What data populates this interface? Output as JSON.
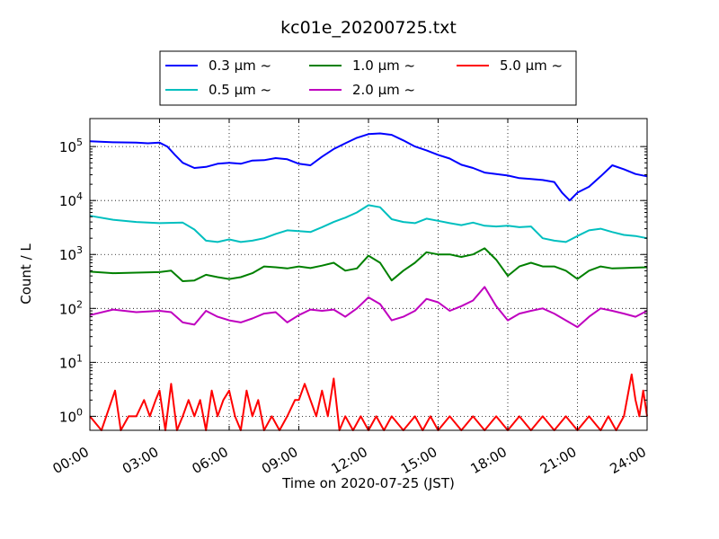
{
  "chart_data": {
    "type": "line",
    "title": "kc01e_20200725.txt",
    "xlabel": "Time on 2020-07-25 (JST)",
    "ylabel": "Count / L",
    "y_scale": "log",
    "xlim": [
      "00:00",
      "24:00"
    ],
    "ylim": [
      0.55,
      330000
    ],
    "grid": true,
    "legend_position": "top-center, above plot",
    "x_ticks": [
      "00:00",
      "03:00",
      "06:00",
      "09:00",
      "12:00",
      "15:00",
      "18:00",
      "21:00",
      "24:00"
    ],
    "y_ticks": [
      {
        "value": 1,
        "base": "10",
        "exp": "0"
      },
      {
        "value": 10,
        "base": "10",
        "exp": "1"
      },
      {
        "value": 100,
        "base": "10",
        "exp": "2"
      },
      {
        "value": 1000,
        "base": "10",
        "exp": "3"
      },
      {
        "value": 10000,
        "base": "10",
        "exp": "4"
      },
      {
        "value": 100000,
        "base": "10",
        "exp": "5"
      }
    ],
    "series": [
      {
        "name": "0.3 μm ~",
        "color": "#0000ff",
        "points": [
          [
            "00:00",
            125000
          ],
          [
            "01:00",
            120000
          ],
          [
            "02:00",
            118000
          ],
          [
            "02:30",
            115000
          ],
          [
            "03:00",
            118000
          ],
          [
            "03:20",
            100000
          ],
          [
            "03:40",
            70000
          ],
          [
            "04:00",
            50000
          ],
          [
            "04:30",
            40000
          ],
          [
            "05:00",
            42000
          ],
          [
            "05:30",
            48000
          ],
          [
            "06:00",
            50000
          ],
          [
            "06:30",
            48000
          ],
          [
            "07:00",
            55000
          ],
          [
            "07:30",
            56000
          ],
          [
            "08:00",
            61000
          ],
          [
            "08:30",
            58000
          ],
          [
            "09:00",
            48000
          ],
          [
            "09:30",
            45000
          ],
          [
            "10:00",
            65000
          ],
          [
            "10:30",
            90000
          ],
          [
            "11:00",
            115000
          ],
          [
            "11:30",
            145000
          ],
          [
            "12:00",
            170000
          ],
          [
            "12:30",
            175000
          ],
          [
            "13:00",
            165000
          ],
          [
            "13:30",
            130000
          ],
          [
            "14:00",
            100000
          ],
          [
            "14:30",
            85000
          ],
          [
            "15:00",
            70000
          ],
          [
            "15:30",
            60000
          ],
          [
            "16:00",
            46000
          ],
          [
            "16:30",
            40000
          ],
          [
            "17:00",
            33000
          ],
          [
            "17:30",
            31000
          ],
          [
            "18:00",
            29000
          ],
          [
            "18:30",
            26000
          ],
          [
            "19:00",
            25000
          ],
          [
            "19:30",
            24000
          ],
          [
            "20:00",
            22000
          ],
          [
            "20:20",
            14000
          ],
          [
            "20:40",
            10000
          ],
          [
            "21:00",
            14000
          ],
          [
            "21:30",
            18000
          ],
          [
            "22:00",
            28000
          ],
          [
            "22:30",
            45000
          ],
          [
            "23:00",
            38000
          ],
          [
            "23:30",
            31000
          ],
          [
            "24:00",
            28000
          ]
        ]
      },
      {
        "name": "0.5 μm ~",
        "color": "#00bfbf",
        "points": [
          [
            "00:00",
            5200
          ],
          [
            "01:00",
            4400
          ],
          [
            "02:00",
            4000
          ],
          [
            "03:00",
            3800
          ],
          [
            "04:00",
            3900
          ],
          [
            "04:30",
            2900
          ],
          [
            "05:00",
            1800
          ],
          [
            "05:30",
            1700
          ],
          [
            "06:00",
            1900
          ],
          [
            "06:30",
            1700
          ],
          [
            "07:00",
            1800
          ],
          [
            "07:30",
            2000
          ],
          [
            "08:00",
            2400
          ],
          [
            "08:30",
            2800
          ],
          [
            "09:00",
            2700
          ],
          [
            "09:30",
            2600
          ],
          [
            "10:00",
            3200
          ],
          [
            "10:30",
            4000
          ],
          [
            "11:00",
            4800
          ],
          [
            "11:30",
            6000
          ],
          [
            "12:00",
            8200
          ],
          [
            "12:30",
            7500
          ],
          [
            "13:00",
            4500
          ],
          [
            "13:30",
            4000
          ],
          [
            "14:00",
            3800
          ],
          [
            "14:30",
            4600
          ],
          [
            "15:00",
            4200
          ],
          [
            "15:30",
            3800
          ],
          [
            "16:00",
            3500
          ],
          [
            "16:30",
            3900
          ],
          [
            "17:00",
            3400
          ],
          [
            "17:30",
            3300
          ],
          [
            "18:00",
            3400
          ],
          [
            "18:30",
            3200
          ],
          [
            "19:00",
            3300
          ],
          [
            "19:30",
            2000
          ],
          [
            "20:00",
            1800
          ],
          [
            "20:30",
            1700
          ],
          [
            "21:00",
            2200
          ],
          [
            "21:30",
            2800
          ],
          [
            "22:00",
            3000
          ],
          [
            "22:30",
            2600
          ],
          [
            "23:00",
            2300
          ],
          [
            "23:30",
            2200
          ],
          [
            "24:00",
            2000
          ]
        ]
      },
      {
        "name": "1.0 μm ~",
        "color": "#008000",
        "points": [
          [
            "00:00",
            480
          ],
          [
            "01:00",
            450
          ],
          [
            "02:00",
            460
          ],
          [
            "03:00",
            470
          ],
          [
            "03:30",
            500
          ],
          [
            "04:00",
            320
          ],
          [
            "04:30",
            330
          ],
          [
            "05:00",
            420
          ],
          [
            "05:30",
            380
          ],
          [
            "06:00",
            350
          ],
          [
            "06:30",
            380
          ],
          [
            "07:00",
            450
          ],
          [
            "07:30",
            600
          ],
          [
            "08:00",
            580
          ],
          [
            "08:30",
            550
          ],
          [
            "09:00",
            600
          ],
          [
            "09:30",
            560
          ],
          [
            "10:00",
            620
          ],
          [
            "10:30",
            700
          ],
          [
            "11:00",
            500
          ],
          [
            "11:30",
            550
          ],
          [
            "12:00",
            950
          ],
          [
            "12:30",
            700
          ],
          [
            "13:00",
            330
          ],
          [
            "13:30",
            500
          ],
          [
            "14:00",
            700
          ],
          [
            "14:30",
            1100
          ],
          [
            "15:00",
            1000
          ],
          [
            "15:30",
            1000
          ],
          [
            "16:00",
            900
          ],
          [
            "16:30",
            1000
          ],
          [
            "17:00",
            1300
          ],
          [
            "17:30",
            800
          ],
          [
            "18:00",
            400
          ],
          [
            "18:30",
            600
          ],
          [
            "19:00",
            700
          ],
          [
            "19:30",
            600
          ],
          [
            "20:00",
            600
          ],
          [
            "20:30",
            500
          ],
          [
            "21:00",
            350
          ],
          [
            "21:30",
            500
          ],
          [
            "22:00",
            600
          ],
          [
            "22:30",
            550
          ],
          [
            "23:00",
            560
          ],
          [
            "23:30",
            570
          ],
          [
            "24:00",
            580
          ]
        ]
      },
      {
        "name": "2.0 μm ~",
        "color": "#bf00bf",
        "points": [
          [
            "00:00",
            75
          ],
          [
            "01:00",
            95
          ],
          [
            "02:00",
            85
          ],
          [
            "03:00",
            90
          ],
          [
            "03:30",
            85
          ],
          [
            "04:00",
            55
          ],
          [
            "04:30",
            50
          ],
          [
            "05:00",
            90
          ],
          [
            "05:30",
            70
          ],
          [
            "06:00",
            60
          ],
          [
            "06:30",
            55
          ],
          [
            "07:00",
            65
          ],
          [
            "07:30",
            80
          ],
          [
            "08:00",
            85
          ],
          [
            "08:30",
            55
          ],
          [
            "09:00",
            75
          ],
          [
            "09:30",
            95
          ],
          [
            "10:00",
            90
          ],
          [
            "10:30",
            95
          ],
          [
            "11:00",
            70
          ],
          [
            "11:30",
            100
          ],
          [
            "12:00",
            160
          ],
          [
            "12:30",
            120
          ],
          [
            "13:00",
            60
          ],
          [
            "13:30",
            70
          ],
          [
            "14:00",
            90
          ],
          [
            "14:30",
            150
          ],
          [
            "15:00",
            130
          ],
          [
            "15:30",
            90
          ],
          [
            "16:00",
            110
          ],
          [
            "16:30",
            140
          ],
          [
            "17:00",
            250
          ],
          [
            "17:30",
            110
          ],
          [
            "18:00",
            60
          ],
          [
            "18:30",
            80
          ],
          [
            "19:00",
            90
          ],
          [
            "19:30",
            100
          ],
          [
            "20:00",
            80
          ],
          [
            "20:30",
            60
          ],
          [
            "21:00",
            45
          ],
          [
            "21:30",
            70
          ],
          [
            "22:00",
            100
          ],
          [
            "22:30",
            90
          ],
          [
            "23:00",
            80
          ],
          [
            "23:30",
            70
          ],
          [
            "24:00",
            90
          ]
        ]
      },
      {
        "name": "5.0 μm ~",
        "color": "#ff0000",
        "points": [
          [
            "00:00",
            1
          ],
          [
            "00:30",
            0
          ],
          [
            "01:05",
            3
          ],
          [
            "01:20",
            0
          ],
          [
            "01:40",
            1
          ],
          [
            "02:00",
            1
          ],
          [
            "02:20",
            2
          ],
          [
            "02:35",
            1
          ],
          [
            "02:50",
            2
          ],
          [
            "03:00",
            3
          ],
          [
            "03:15",
            0
          ],
          [
            "03:30",
            4
          ],
          [
            "03:45",
            0
          ],
          [
            "04:00",
            1
          ],
          [
            "04:15",
            2
          ],
          [
            "04:30",
            1
          ],
          [
            "04:45",
            2
          ],
          [
            "05:00",
            0
          ],
          [
            "05:15",
            3
          ],
          [
            "05:30",
            1
          ],
          [
            "05:45",
            2
          ],
          [
            "06:00",
            3
          ],
          [
            "06:15",
            1
          ],
          [
            "06:30",
            0
          ],
          [
            "06:45",
            3
          ],
          [
            "07:00",
            1
          ],
          [
            "07:15",
            2
          ],
          [
            "07:30",
            0
          ],
          [
            "07:50",
            1
          ],
          [
            "08:10",
            0
          ],
          [
            "08:30",
            1
          ],
          [
            "08:50",
            2
          ],
          [
            "09:00",
            2
          ],
          [
            "09:15",
            4
          ],
          [
            "09:30",
            2
          ],
          [
            "09:45",
            1
          ],
          [
            "10:00",
            3
          ],
          [
            "10:15",
            1
          ],
          [
            "10:30",
            5
          ],
          [
            "10:45",
            0
          ],
          [
            "11:00",
            1
          ],
          [
            "11:20",
            0
          ],
          [
            "11:40",
            1
          ],
          [
            "12:00",
            0
          ],
          [
            "12:20",
            1
          ],
          [
            "12:40",
            0
          ],
          [
            "13:00",
            1
          ],
          [
            "13:30",
            0
          ],
          [
            "14:00",
            1
          ],
          [
            "14:20",
            0
          ],
          [
            "14:40",
            1
          ],
          [
            "15:00",
            0
          ],
          [
            "15:30",
            1
          ],
          [
            "16:00",
            0
          ],
          [
            "16:30",
            1
          ],
          [
            "17:00",
            0
          ],
          [
            "17:30",
            1
          ],
          [
            "18:00",
            0
          ],
          [
            "18:30",
            1
          ],
          [
            "19:00",
            0
          ],
          [
            "19:30",
            1
          ],
          [
            "20:00",
            0
          ],
          [
            "20:30",
            1
          ],
          [
            "21:00",
            0
          ],
          [
            "21:30",
            1
          ],
          [
            "22:00",
            0
          ],
          [
            "22:20",
            1
          ],
          [
            "22:40",
            0
          ],
          [
            "23:00",
            1
          ],
          [
            "23:20",
            6
          ],
          [
            "23:30",
            2
          ],
          [
            "23:40",
            1
          ],
          [
            "23:50",
            3
          ],
          [
            "24:00",
            1
          ]
        ]
      }
    ]
  }
}
